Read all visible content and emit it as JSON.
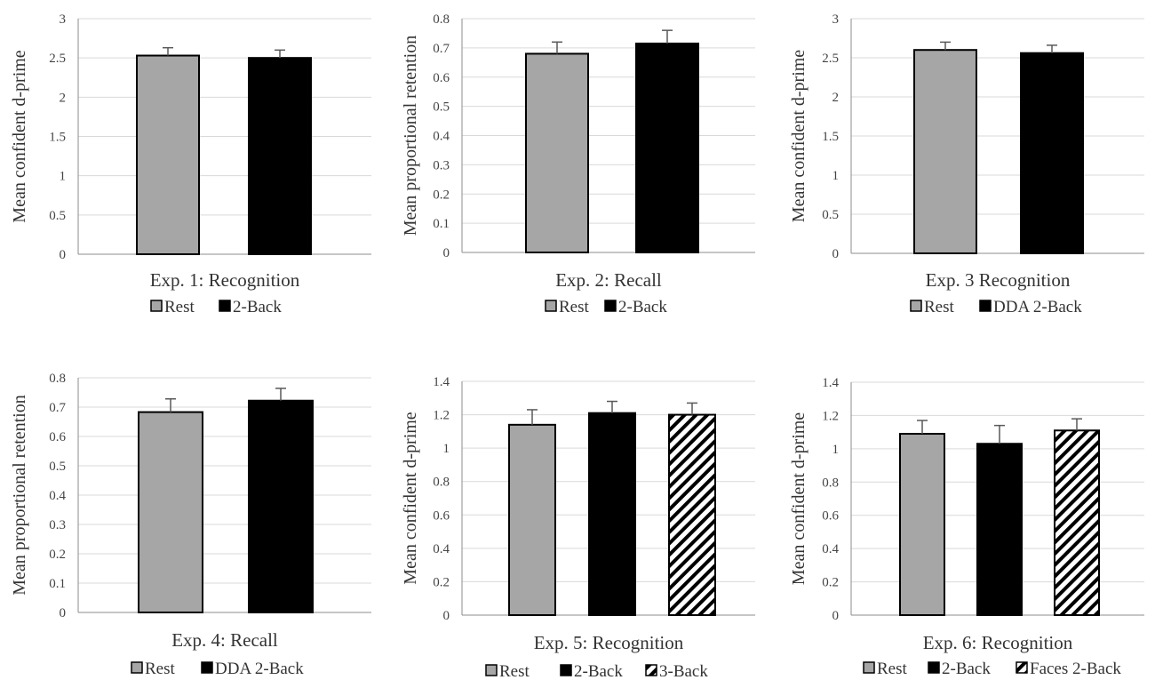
{
  "chart_data": [
    {
      "type": "bar",
      "title": "Exp. 1: Recognition",
      "ylabel": "Mean confident d-prime",
      "ylim": [
        0,
        3
      ],
      "yticks": [
        "0",
        "0.5",
        "1",
        "1.5",
        "2",
        "2.5",
        "3"
      ],
      "ytick_values": [
        0,
        0.5,
        1,
        1.5,
        2,
        2.5,
        3
      ],
      "grid": true,
      "legend_position": "bottom",
      "series": [
        {
          "name": "Rest",
          "value": 2.53,
          "error": 0.1,
          "fill": "gray"
        },
        {
          "name": "2-Back",
          "value": 2.5,
          "error": 0.1,
          "fill": "black"
        }
      ]
    },
    {
      "type": "bar",
      "title": "Exp. 2: Recall",
      "ylabel": "Mean proportional retention",
      "ylim": [
        0,
        0.8
      ],
      "yticks": [
        "0",
        "0.1",
        "0.2",
        "0.3",
        "0.4",
        "0.5",
        "0.6",
        "0.7",
        "0.8"
      ],
      "ytick_values": [
        0,
        0.1,
        0.2,
        0.3,
        0.4,
        0.5,
        0.6,
        0.7,
        0.8
      ],
      "grid": true,
      "legend_position": "bottom",
      "series": [
        {
          "name": "Rest",
          "value": 0.68,
          "error": 0.04,
          "fill": "gray"
        },
        {
          "name": "2-Back",
          "value": 0.715,
          "error": 0.045,
          "fill": "black"
        }
      ]
    },
    {
      "type": "bar",
      "title": "Exp. 3 Recognition",
      "ylabel": "Mean confident d-prime",
      "ylim": [
        0,
        3
      ],
      "yticks": [
        "0",
        "0.5",
        "1",
        "1.5",
        "2",
        "2.5",
        "3"
      ],
      "ytick_values": [
        0,
        0.5,
        1,
        1.5,
        2,
        2.5,
        3
      ],
      "grid": true,
      "legend_position": "bottom",
      "series": [
        {
          "name": "Rest",
          "value": 2.6,
          "error": 0.1,
          "fill": "gray"
        },
        {
          "name": "DDA 2-Back",
          "value": 2.56,
          "error": 0.1,
          "fill": "black"
        }
      ]
    },
    {
      "type": "bar",
      "title": "Exp. 4: Recall",
      "ylabel": "Mean proportional retention",
      "ylim": [
        0,
        0.8
      ],
      "yticks": [
        "0",
        "0.1",
        "0.2",
        "0.3",
        "0.4",
        "0.5",
        "0.6",
        "0.7",
        "0.8"
      ],
      "ytick_values": [
        0,
        0.1,
        0.2,
        0.3,
        0.4,
        0.5,
        0.6,
        0.7,
        0.8
      ],
      "grid": true,
      "legend_position": "bottom",
      "series": [
        {
          "name": "Rest",
          "value": 0.683,
          "error": 0.045,
          "fill": "gray"
        },
        {
          "name": "DDA 2-Back",
          "value": 0.722,
          "error": 0.042,
          "fill": "black"
        }
      ]
    },
    {
      "type": "bar",
      "title": "Exp. 5: Recognition",
      "ylabel": "Mean confident d-prime",
      "ylim": [
        0,
        1.4
      ],
      "yticks": [
        "0",
        "0.2",
        "0.4",
        "0.6",
        "0.8",
        "1",
        "1.2",
        "1.4"
      ],
      "ytick_values": [
        0,
        0.2,
        0.4,
        0.6,
        0.8,
        1,
        1.2,
        1.4
      ],
      "grid": true,
      "legend_position": "bottom",
      "series": [
        {
          "name": "Rest",
          "value": 1.14,
          "error": 0.09,
          "fill": "gray"
        },
        {
          "name": "2-Back",
          "value": 1.21,
          "error": 0.07,
          "fill": "black"
        },
        {
          "name": "3-Back",
          "value": 1.2,
          "error": 0.07,
          "fill": "hatch"
        }
      ]
    },
    {
      "type": "bar",
      "title": "Exp. 6: Recognition",
      "ylabel": "Mean confident d-prime",
      "ylim": [
        0,
        1.4
      ],
      "yticks": [
        "0",
        "0.2",
        "0.4",
        "0.6",
        "0.8",
        "1",
        "1.2",
        "1.4"
      ],
      "ytick_values": [
        0,
        0.2,
        0.4,
        0.6,
        0.8,
        1,
        1.2,
        1.4
      ],
      "grid": true,
      "legend_position": "bottom",
      "series": [
        {
          "name": "Rest",
          "value": 1.09,
          "error": 0.08,
          "fill": "gray"
        },
        {
          "name": "2-Back",
          "value": 1.03,
          "error": 0.11,
          "fill": "black"
        },
        {
          "name": "Faces 2-Back",
          "value": 1.11,
          "error": 0.07,
          "fill": "hatch"
        }
      ]
    }
  ],
  "colors": {
    "rest_gray": "#a6a6a6",
    "back_black": "#000000",
    "gridline": "#d9d9d9",
    "axis": "#8c8c8c",
    "errorbar": "#595959"
  }
}
